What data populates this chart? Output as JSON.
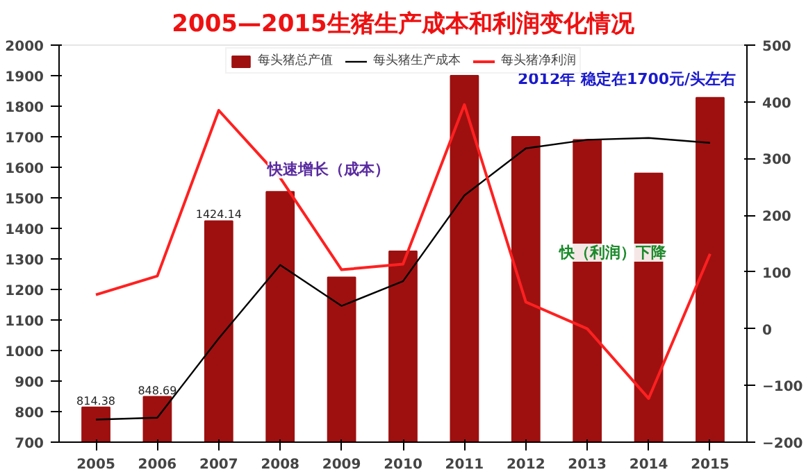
{
  "chart_data": {
    "type": "bar",
    "title": "2005—2015生猪生产成本和利润变化情况",
    "categories": [
      "2005",
      "2006",
      "2007",
      "2008",
      "2009",
      "2010",
      "2011",
      "2012",
      "2013",
      "2014",
      "2015"
    ],
    "series": [
      {
        "name": "每头猪总产值",
        "color": "#9e1010",
        "values": [
          814.38,
          848.69,
          1424.14,
          1520,
          1240,
          1325,
          1900,
          1700,
          1690,
          1580,
          1828
        ],
        "value_labels": [
          "814.38",
          "848.69",
          "1424.14",
          null,
          null,
          null,
          null,
          null,
          null,
          null,
          null
        ]
      },
      {
        "name": "每头猪生产成本",
        "type": "line",
        "color": "#000000",
        "values": [
          774,
          780,
          1040,
          1280,
          1146,
          1227,
          1508,
          1662,
          1690,
          1696,
          1680
        ]
      },
      {
        "name": "每头猪净利润",
        "type": "line",
        "axis": "y2",
        "color": "#ff2020",
        "values": [
          60,
          93,
          385,
          266,
          104,
          114,
          395,
          47,
          0,
          -123,
          132
        ]
      }
    ],
    "ylim": [
      700,
      2000
    ],
    "yticks": [
      700,
      800,
      900,
      1000,
      1100,
      1200,
      1300,
      1400,
      1500,
      1600,
      1700,
      1800,
      1900,
      2000
    ],
    "y2lim": [
      -200,
      500
    ],
    "y2ticks": [
      -200,
      -100,
      0,
      100,
      200,
      300,
      400,
      500
    ],
    "annotations": [
      "快速增长（成本）",
      "2012年 稳定在1700元/头左右",
      "快（利润）下降"
    ],
    "grid": false,
    "legend": "top",
    "marker": "none"
  }
}
